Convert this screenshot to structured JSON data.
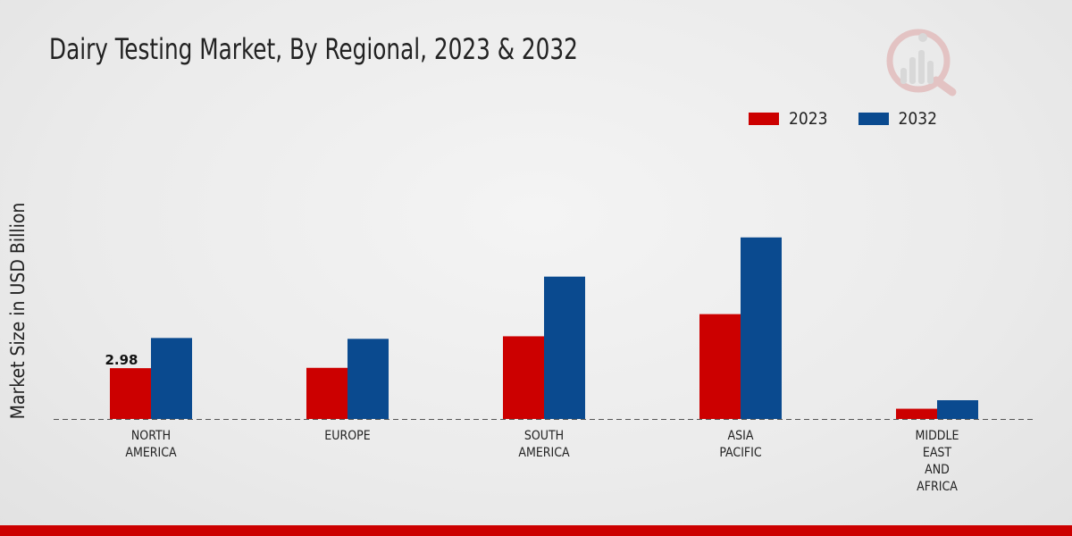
{
  "chart_data": {
    "type": "bar",
    "title": "Dairy Testing Market, By Regional, 2023 & 2032",
    "xlabel": "",
    "ylabel": "Market Size in USD Billion",
    "ylim": [
      0,
      12
    ],
    "categories": [
      [
        "NORTH",
        "AMERICA"
      ],
      [
        "EUROPE"
      ],
      [
        "SOUTH",
        "AMERICA"
      ],
      [
        "ASIA",
        "PACIFIC"
      ],
      [
        "MIDDLE",
        "EAST",
        "AND",
        "AFRICA"
      ]
    ],
    "series": [
      {
        "name": "2023",
        "color": "#cc0000",
        "values": [
          2.98,
          3.0,
          4.85,
          6.15,
          0.6
        ]
      },
      {
        "name": "2032",
        "color": "#0a4a8f",
        "values": [
          4.75,
          4.7,
          8.35,
          10.65,
          1.1
        ]
      }
    ],
    "data_labels": [
      {
        "series": 0,
        "index": 0,
        "text": "2.98"
      }
    ],
    "legend_position": "top-right",
    "grid": false
  }
}
